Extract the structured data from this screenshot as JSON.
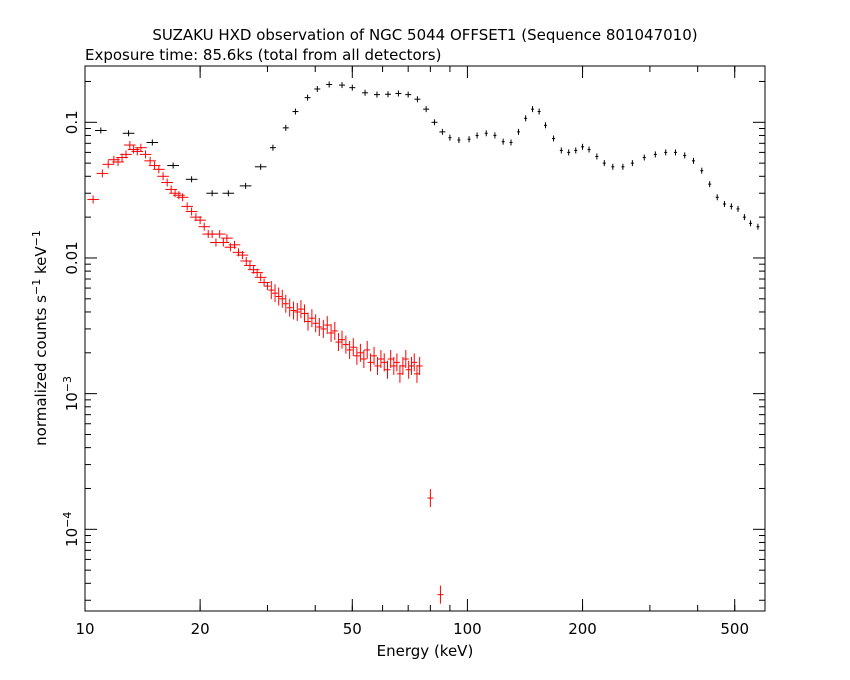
{
  "chart_data": {
    "type": "scatter",
    "title": "SUZAKU HXD observation of NGC 5044 OFFSET1 (Sequence 801047010)",
    "subtitle": "Exposure time: 85.6ks (total from all detectors)",
    "xlabel": "Energy (keV)",
    "ylabel_main": "normalized counts s",
    "ylabel_sup1": "−1",
    "ylabel_mid": " keV",
    "ylabel_sup2": "−1",
    "xscale": "log",
    "yscale": "log",
    "xlim": [
      10,
      600
    ],
    "ylim": [
      2.5e-05,
      0.26
    ],
    "grid": false,
    "x_ticks": [
      {
        "value": 10,
        "label": "10"
      },
      {
        "value": 20,
        "label": "20"
      },
      {
        "value": 50,
        "label": "50"
      },
      {
        "value": 100,
        "label": "100"
      },
      {
        "value": 200,
        "label": "200"
      },
      {
        "value": 500,
        "label": "500"
      }
    ],
    "y_ticks": [
      {
        "value": 0.0001,
        "base": "10",
        "exp": "−4"
      },
      {
        "value": 0.001,
        "base": "10",
        "exp": "−3"
      },
      {
        "value": 0.01,
        "base": "0.01",
        "exp": ""
      },
      {
        "value": 0.1,
        "base": "0.1",
        "exp": ""
      }
    ],
    "series": [
      {
        "color": "#000000",
        "points": [
          [
            11,
            0.087
          ],
          [
            13,
            0.083
          ],
          [
            15,
            0.071
          ],
          [
            17,
            0.048
          ],
          [
            19,
            0.038
          ],
          [
            21.5,
            0.03
          ],
          [
            23.7,
            0.03
          ],
          [
            26.3,
            0.034
          ],
          [
            28.8,
            0.047
          ],
          [
            31,
            0.065
          ],
          [
            33.5,
            0.091
          ],
          [
            35.5,
            0.12
          ],
          [
            38.2,
            0.152
          ],
          [
            40.5,
            0.176
          ],
          [
            43.5,
            0.19
          ],
          [
            47,
            0.188
          ],
          [
            50,
            0.18
          ],
          [
            54,
            0.165
          ],
          [
            58,
            0.16
          ],
          [
            62,
            0.161
          ],
          [
            66,
            0.163
          ],
          [
            70,
            0.16
          ],
          [
            74,
            0.148
          ],
          [
            78,
            0.125
          ],
          [
            82,
            0.1
          ],
          [
            86,
            0.085
          ],
          [
            90,
            0.077
          ],
          [
            95,
            0.074
          ],
          [
            101,
            0.075
          ],
          [
            106,
            0.08
          ],
          [
            112,
            0.083
          ],
          [
            118,
            0.08
          ],
          [
            124,
            0.072
          ],
          [
            130,
            0.071
          ],
          [
            136,
            0.085
          ],
          [
            142,
            0.107
          ],
          [
            148,
            0.125
          ],
          [
            154,
            0.12
          ],
          [
            160,
            0.095
          ],
          [
            168,
            0.076
          ],
          [
            176,
            0.062
          ],
          [
            184,
            0.06
          ],
          [
            192,
            0.062
          ],
          [
            200,
            0.066
          ],
          [
            208,
            0.063
          ],
          [
            218,
            0.056
          ],
          [
            228,
            0.05
          ],
          [
            240,
            0.047
          ],
          [
            255,
            0.047
          ],
          [
            270,
            0.05
          ],
          [
            290,
            0.055
          ],
          [
            310,
            0.058
          ],
          [
            330,
            0.06
          ],
          [
            350,
            0.06
          ],
          [
            370,
            0.057
          ],
          [
            390,
            0.052
          ],
          [
            410,
            0.044
          ],
          [
            430,
            0.035
          ],
          [
            450,
            0.028
          ],
          [
            470,
            0.025
          ],
          [
            490,
            0.024
          ],
          [
            510,
            0.023
          ],
          [
            530,
            0.02
          ],
          [
            550,
            0.018
          ],
          [
            575,
            0.017
          ]
        ]
      },
      {
        "color": "#ff0000",
        "points": [
          [
            10.5,
            0.027
          ],
          [
            11.1,
            0.042
          ],
          [
            11.5,
            0.049
          ],
          [
            11.9,
            0.053
          ],
          [
            12.2,
            0.051
          ],
          [
            12.5,
            0.055
          ],
          [
            12.8,
            0.058
          ],
          [
            13.1,
            0.068
          ],
          [
            13.4,
            0.063
          ],
          [
            13.7,
            0.061
          ],
          [
            14.0,
            0.065
          ],
          [
            14.4,
            0.058
          ],
          [
            14.8,
            0.052
          ],
          [
            15.2,
            0.048
          ],
          [
            15.6,
            0.045
          ],
          [
            16.0,
            0.04
          ],
          [
            16.4,
            0.036
          ],
          [
            16.8,
            0.032
          ],
          [
            17.2,
            0.03
          ],
          [
            17.6,
            0.029
          ],
          [
            18.0,
            0.028
          ],
          [
            18.5,
            0.024
          ],
          [
            19.0,
            0.022
          ],
          [
            19.5,
            0.02
          ],
          [
            20.0,
            0.019
          ],
          [
            20.5,
            0.017
          ],
          [
            21.0,
            0.015
          ],
          [
            21.5,
            0.015
          ],
          [
            22.0,
            0.013
          ],
          [
            22.5,
            0.015
          ],
          [
            23.0,
            0.013
          ],
          [
            23.5,
            0.014
          ],
          [
            24.0,
            0.012
          ],
          [
            24.6,
            0.0125
          ],
          [
            25.2,
            0.011
          ],
          [
            25.8,
            0.0105
          ],
          [
            26.4,
            0.0095
          ],
          [
            27.0,
            0.0088
          ],
          [
            27.6,
            0.0082
          ],
          [
            28.2,
            0.0078
          ],
          [
            28.8,
            0.0072
          ],
          [
            29.4,
            0.0066
          ],
          [
            30.0,
            0.0062
          ],
          [
            30.7,
            0.0058
          ],
          [
            31.4,
            0.0055
          ],
          [
            32.1,
            0.0052
          ],
          [
            32.8,
            0.005
          ],
          [
            33.5,
            0.0046
          ],
          [
            34.3,
            0.0043
          ],
          [
            35.1,
            0.0041
          ],
          [
            35.9,
            0.004
          ],
          [
            36.7,
            0.0042
          ],
          [
            37.5,
            0.0039
          ],
          [
            38.3,
            0.0034
          ],
          [
            39.2,
            0.0036
          ],
          [
            40.1,
            0.0033
          ],
          [
            41.0,
            0.0031
          ],
          [
            42.0,
            0.003
          ],
          [
            43.0,
            0.0032
          ],
          [
            44.0,
            0.0028
          ],
          [
            45.0,
            0.0029
          ],
          [
            46.0,
            0.0024
          ],
          [
            47.0,
            0.0025
          ],
          [
            48.1,
            0.0023
          ],
          [
            49.2,
            0.0021
          ],
          [
            50.3,
            0.0022
          ],
          [
            51.4,
            0.0019
          ],
          [
            52.5,
            0.002
          ],
          [
            53.6,
            0.0018
          ],
          [
            54.7,
            0.0021
          ],
          [
            55.8,
            0.0017
          ],
          [
            57.0,
            0.0019
          ],
          [
            58.2,
            0.0016
          ],
          [
            59.4,
            0.0018
          ],
          [
            60.6,
            0.0017
          ],
          [
            61.8,
            0.0015
          ],
          [
            63.0,
            0.0018
          ],
          [
            64.2,
            0.0016
          ],
          [
            65.4,
            0.0017
          ],
          [
            66.6,
            0.0014
          ],
          [
            67.8,
            0.0016
          ],
          [
            69.0,
            0.0018
          ],
          [
            70.2,
            0.0015
          ],
          [
            71.4,
            0.0016
          ],
          [
            72.6,
            0.0017
          ],
          [
            73.8,
            0.0014
          ],
          [
            75.0,
            0.0016
          ],
          [
            80.0,
            0.00017
          ],
          [
            85.0,
            3.3e-05
          ]
        ]
      }
    ]
  }
}
